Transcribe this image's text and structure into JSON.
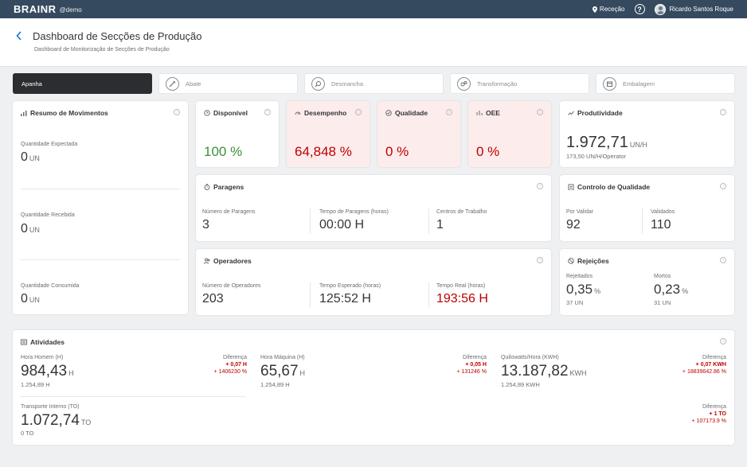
{
  "topbar": {
    "logo": "BRAINR",
    "tenant": "@demo",
    "location": "Receção",
    "help_icon": "help-icon",
    "user_name": "Ricardo Santos Roque"
  },
  "header": {
    "title": "Dashboard de Secções de Produção",
    "subtitle": "Dashboard de Monitorização de Secções de Produção"
  },
  "tabs": [
    {
      "label": "Apanha",
      "active": true
    },
    {
      "label": "Abate",
      "icon": "knife-icon"
    },
    {
      "label": "Desmancha",
      "icon": "search-icon"
    },
    {
      "label": "Transformação",
      "icon": "transform-icon"
    },
    {
      "label": "Embalagem",
      "icon": "box-icon"
    }
  ],
  "movimentos": {
    "title": "Resumo de Movimentos",
    "expected_label": "Quantidade Expectada",
    "expected_value": "0",
    "expected_unit": "UN",
    "received_label": "Quantidade Recebida",
    "received_value": "0",
    "received_unit": "UN",
    "consumed_label": "Quantidade Consumida",
    "consumed_value": "0",
    "consumed_unit": "UN"
  },
  "kpis": {
    "disponivel": {
      "title": "Disponível",
      "value": "100 %",
      "color": "#3d8f35"
    },
    "desempenho": {
      "title": "Desempenho",
      "value": "64,848 %",
      "color": "#bb0000"
    },
    "qualidade": {
      "title": "Qualidade",
      "value": "0 %",
      "color": "#bb0000"
    },
    "oee": {
      "title": "OEE",
      "value": "0 %",
      "color": "#bb0000"
    }
  },
  "produtividade": {
    "title": "Produtividade",
    "value": "1.972,71",
    "unit": "UN/H",
    "sub": "173,50 UN/H/Operator"
  },
  "paragens": {
    "title": "Paragens",
    "c1_label": "Número de Paragens",
    "c1_value": "3",
    "c2_label": "Tempo de Paragens (horas)",
    "c2_value": "00:00 H",
    "c3_label": "Centros de Trabalho",
    "c3_value": "1"
  },
  "controlo": {
    "title": "Controlo de Qualidade",
    "c1_label": "Por Validar",
    "c1_value": "92",
    "c2_label": "Validados",
    "c2_value": "110"
  },
  "operadores": {
    "title": "Operadores",
    "c1_label": "Número de Operadores",
    "c1_value": "203",
    "c2_label": "Tempo Esperado (horas)",
    "c2_value": "125:52 H",
    "c3_label": "Tempo Real (horas)",
    "c3_value": "193:56 H"
  },
  "rejeicoes": {
    "title": "Rejeições",
    "c1_label": "Rejeitados",
    "c1_value": "0,35",
    "c1_unit": "%",
    "c1_sub": "37 UN",
    "c2_label": "Mortos",
    "c2_value": "0,23",
    "c2_unit": "%",
    "c2_sub": "31 UN"
  },
  "atividades": {
    "title": "Atividades",
    "items": [
      {
        "label": "Hora Homem (H)",
        "value": "984,43",
        "unit": "H",
        "sub": "1.254,89 H",
        "diff_label": "Diferença",
        "diff_value": "+ 0,07 H",
        "diff_pct": "+ 1406230 %"
      },
      {
        "label": "Hora Máquina (H)",
        "value": "65,67",
        "unit": "H",
        "sub": "1.254,89 H",
        "diff_label": "Diferença",
        "diff_value": "+ 0,05 H",
        "diff_pct": "+ 131246 %"
      },
      {
        "label": "Quilowatts/Hora (KWH)",
        "value": "13.187,82",
        "unit": "KWH",
        "sub": "1.254,89 KWH",
        "diff_label": "Diferença",
        "diff_value": "+ 0,07 KWH",
        "diff_pct": "+ 18839642.86 %"
      },
      {
        "label": "Transporte Interno (TO)",
        "value": "1.072,74",
        "unit": "TO",
        "sub": "0 TO",
        "diff_label": "Diferença",
        "diff_value": "+ 1 TO",
        "diff_pct": "+ 107173.9 %"
      }
    ]
  }
}
